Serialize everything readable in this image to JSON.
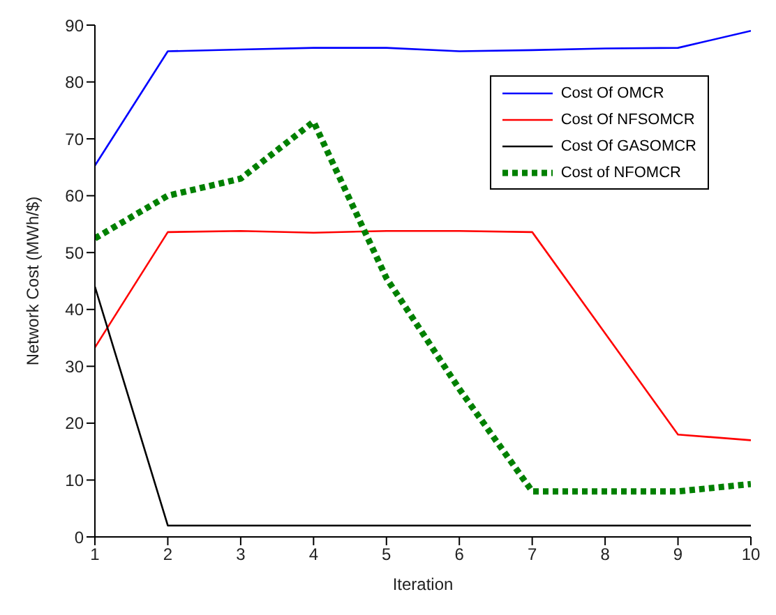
{
  "chart_data": {
    "type": "line",
    "xlabel": "Iteration",
    "ylabel": "Network Cost (MWh/$)",
    "x": [
      1,
      2,
      3,
      4,
      5,
      6,
      7,
      8,
      9,
      10
    ],
    "xlim": [
      1,
      10
    ],
    "xticks": [
      1,
      2,
      3,
      4,
      5,
      6,
      7,
      8,
      9,
      10
    ],
    "ylim": [
      0,
      90
    ],
    "yticks": [
      0,
      10,
      20,
      30,
      40,
      50,
      60,
      70,
      80,
      90
    ],
    "grid": false,
    "legend": "top right",
    "marker": "none",
    "series": [
      {
        "name": "Cost Of OMCR",
        "color": "#0000ff",
        "values": [
          65.3,
          85.4,
          85.7,
          86,
          86,
          85.4,
          85.6,
          85.9,
          86,
          89
        ],
        "line_style": "solid"
      },
      {
        "name": "Cost Of NFSOMCR",
        "color": "#ff0000",
        "values": [
          33.3,
          53.6,
          53.8,
          53.5,
          53.8,
          53.8,
          53.6,
          35.8,
          18,
          17
        ],
        "line_style": "solid"
      },
      {
        "name": "Cost Of GASOMCR",
        "color": "#000000",
        "values": [
          44,
          2,
          2,
          2,
          2,
          2,
          2,
          2,
          2,
          2
        ],
        "line_style": "solid"
      },
      {
        "name": "Cost of NFOMCR",
        "color": "#008000",
        "values": [
          52.5,
          60,
          63,
          73,
          45.5,
          26,
          8,
          8,
          8,
          9.3
        ],
        "line_style": "dotted"
      }
    ]
  }
}
